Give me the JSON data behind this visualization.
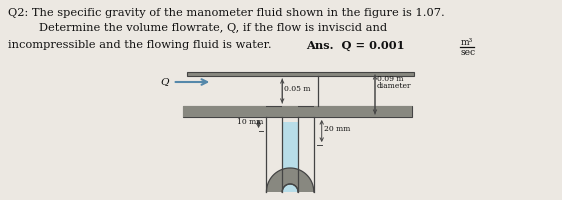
{
  "title_line1": "Q2: The specific gravity of the manometer fluid shown in the figure is 1.07.",
  "title_line2": "Determine the volume flowrate, Q, if the flow is inviscid and",
  "title_line3": "incompressible and the flowing fluid is water.",
  "ans_text": "Ans.  Q = 0.001 ",
  "ans_unit_num": "m³",
  "ans_unit_den": "sec",
  "label_005": "0.05 m",
  "label_009": "0.09 m",
  "label_diam": "diameter",
  "label_10mm": "10 mm",
  "label_20mm": "20 mm",
  "label_Q": "Q",
  "bg_color": "#ece8e2",
  "fluid_color": "#b8dde8",
  "text_color": "#111111",
  "pipe_wall_color": "#888880",
  "line_color": "#444444",
  "arrow_color": "#5588aa"
}
